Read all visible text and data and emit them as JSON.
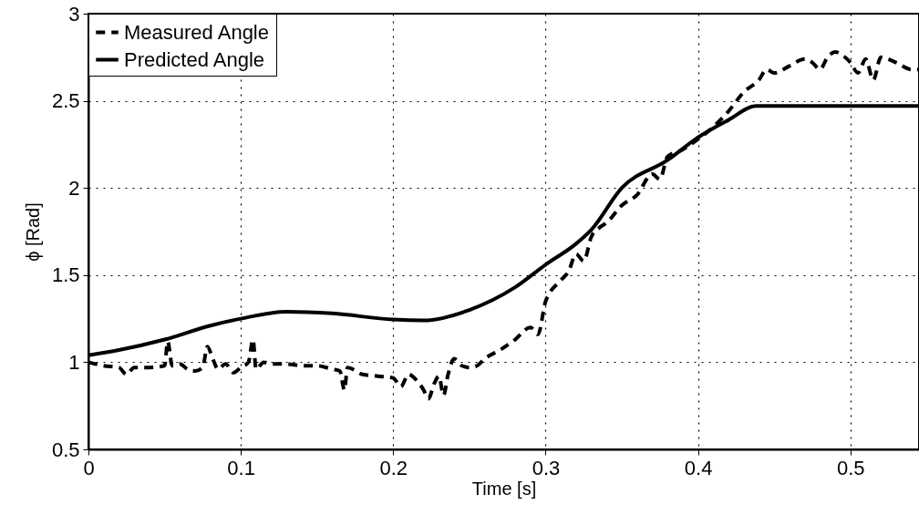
{
  "chart_data": {
    "type": "line",
    "xlabel": "Time [s]",
    "ylabel": "ϕ [Rad]",
    "xlim": [
      0,
      0.545
    ],
    "ylim": [
      0.5,
      3
    ],
    "xticks": [
      0,
      0.1,
      0.2,
      0.3,
      0.4,
      0.5
    ],
    "yticks": [
      0.5,
      1,
      1.5,
      2,
      2.5,
      3
    ],
    "grid": true,
    "legend": "top left",
    "marker": "none",
    "series": [
      {
        "name": "Measured Angle",
        "color": "#000000",
        "line_style": "dashed",
        "x": [
          0,
          0.01,
          0.02,
          0.025,
          0.03,
          0.04,
          0.05,
          0.052,
          0.055,
          0.06,
          0.065,
          0.07,
          0.075,
          0.078,
          0.082,
          0.085,
          0.09,
          0.095,
          0.1,
          0.105,
          0.108,
          0.11,
          0.115,
          0.12,
          0.13,
          0.14,
          0.15,
          0.16,
          0.165,
          0.168,
          0.17,
          0.18,
          0.19,
          0.2,
          0.205,
          0.21,
          0.215,
          0.22,
          0.223,
          0.227,
          0.23,
          0.233,
          0.236,
          0.24,
          0.245,
          0.25,
          0.255,
          0.26,
          0.27,
          0.28,
          0.29,
          0.295,
          0.3,
          0.31,
          0.315,
          0.32,
          0.325,
          0.33,
          0.335,
          0.34,
          0.35,
          0.36,
          0.37,
          0.375,
          0.38,
          0.39,
          0.4,
          0.41,
          0.42,
          0.43,
          0.44,
          0.445,
          0.45,
          0.46,
          0.47,
          0.475,
          0.48,
          0.485,
          0.49,
          0.495,
          0.5,
          0.505,
          0.51,
          0.515,
          0.52,
          0.53,
          0.54,
          0.545
        ],
        "values": [
          1.0,
          0.98,
          0.97,
          0.93,
          0.97,
          0.97,
          0.98,
          1.12,
          0.98,
          0.99,
          0.96,
          0.95,
          0.97,
          1.09,
          1.01,
          0.96,
          0.99,
          0.94,
          0.97,
          1.0,
          1.13,
          0.96,
          1.0,
          0.99,
          0.99,
          0.98,
          0.98,
          0.96,
          0.95,
          0.84,
          0.97,
          0.93,
          0.92,
          0.91,
          0.86,
          0.93,
          0.9,
          0.84,
          0.79,
          0.88,
          0.92,
          0.81,
          0.93,
          1.02,
          0.98,
          0.97,
          0.98,
          1.02,
          1.07,
          1.13,
          1.2,
          1.16,
          1.35,
          1.47,
          1.52,
          1.62,
          1.58,
          1.72,
          1.77,
          1.8,
          1.9,
          1.96,
          2.08,
          2.05,
          2.18,
          2.22,
          2.28,
          2.35,
          2.44,
          2.55,
          2.62,
          2.68,
          2.66,
          2.7,
          2.74,
          2.72,
          2.68,
          2.75,
          2.78,
          2.76,
          2.72,
          2.66,
          2.74,
          2.62,
          2.75,
          2.72,
          2.68,
          2.68
        ]
      },
      {
        "name": "Predicted Angle",
        "color": "#000000",
        "line_style": "solid",
        "x": [
          0,
          0.02,
          0.05,
          0.08,
          0.1,
          0.13,
          0.16,
          0.2,
          0.22,
          0.25,
          0.28,
          0.3,
          0.32,
          0.33,
          0.35,
          0.38,
          0.4,
          0.42,
          0.438,
          0.545
        ],
        "values": [
          1.04,
          1.07,
          1.13,
          1.21,
          1.25,
          1.29,
          1.28,
          1.245,
          1.24,
          1.3,
          1.43,
          1.56,
          1.68,
          1.76,
          2.0,
          2.16,
          2.29,
          2.39,
          2.47,
          2.47
        ]
      }
    ]
  }
}
